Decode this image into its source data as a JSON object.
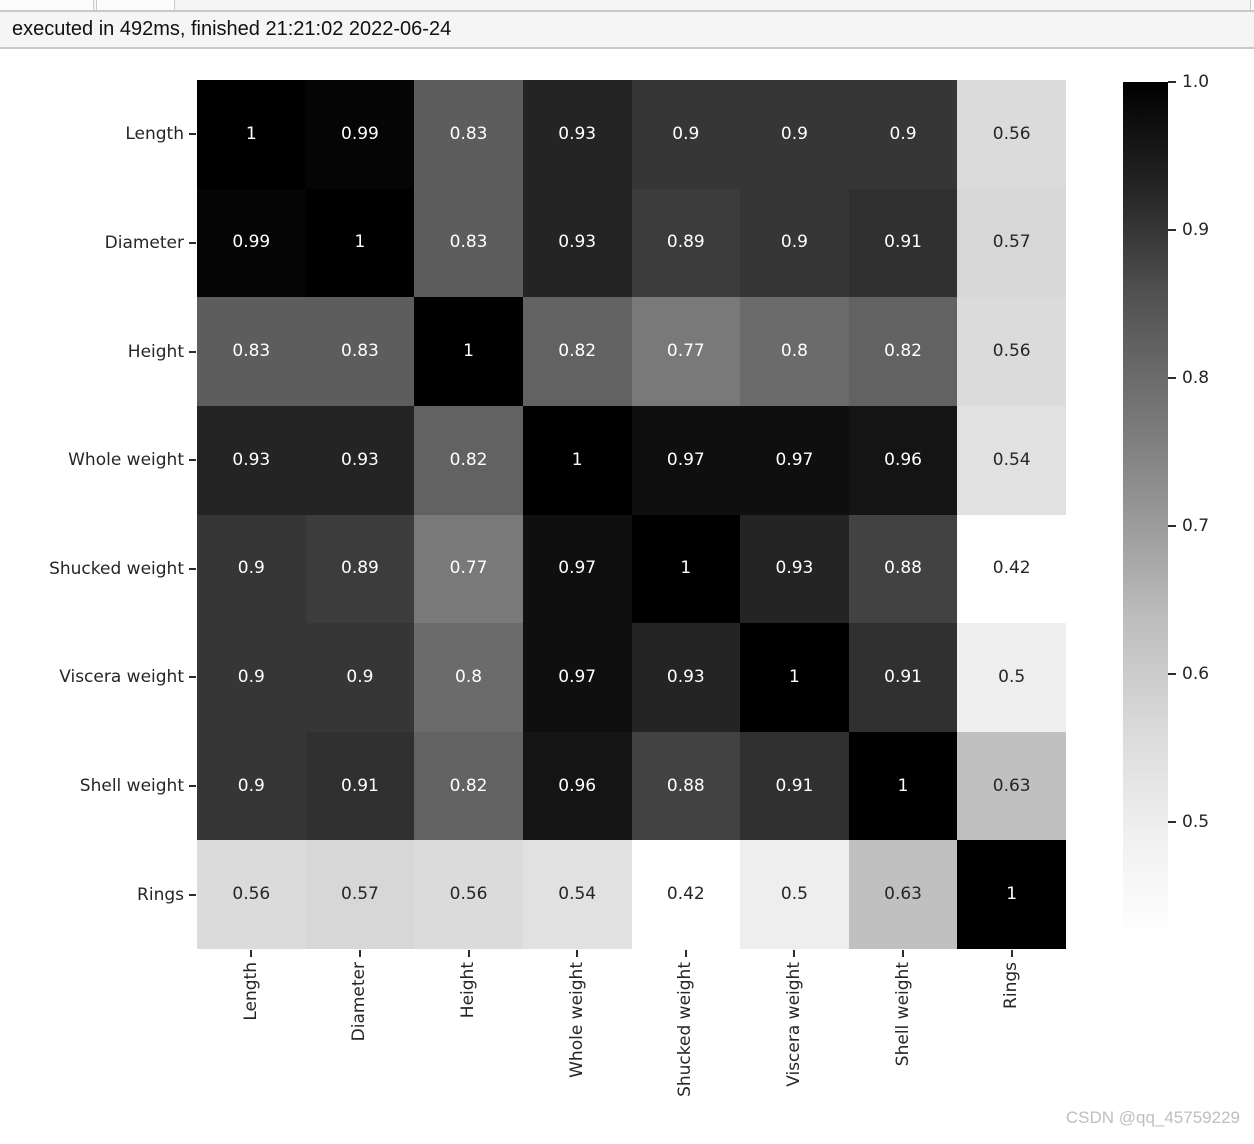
{
  "status_bar": {
    "text": "executed in 492ms, finished 21:21:02 2022-06-24"
  },
  "watermark": "CSDN @qq_45759229",
  "colors": {
    "fig_bg": "#ffffff",
    "status_bg": "#f5f5f5",
    "border": "#c9c9c9",
    "tick": "#2b2b2b",
    "label": "#262626",
    "annot_dark": "#262626",
    "annot_light": "#ffffff",
    "watermark": "#bfbfbf",
    "cmap_min_color": "#ffffff",
    "cmap_max_color": "#000000"
  },
  "chart_data": {
    "type": "heatmap",
    "title": "",
    "categories": [
      "Length",
      "Diameter",
      "Height",
      "Whole weight",
      "Shucked weight",
      "Viscera weight",
      "Shell weight",
      "Rings"
    ],
    "matrix": [
      [
        1,
        0.99,
        0.83,
        0.93,
        0.9,
        0.9,
        0.9,
        0.56
      ],
      [
        0.99,
        1,
        0.83,
        0.93,
        0.89,
        0.9,
        0.91,
        0.57
      ],
      [
        0.83,
        0.83,
        1,
        0.82,
        0.77,
        0.8,
        0.82,
        0.56
      ],
      [
        0.93,
        0.93,
        0.82,
        1,
        0.97,
        0.97,
        0.96,
        0.54
      ],
      [
        0.9,
        0.89,
        0.77,
        0.97,
        1,
        0.93,
        0.88,
        0.42
      ],
      [
        0.9,
        0.9,
        0.8,
        0.97,
        0.93,
        1,
        0.91,
        0.5
      ],
      [
        0.9,
        0.91,
        0.82,
        0.96,
        0.88,
        0.91,
        1,
        0.63
      ],
      [
        0.56,
        0.57,
        0.56,
        0.54,
        0.42,
        0.5,
        0.63,
        1
      ]
    ],
    "annotated": true,
    "colormap": "Greys",
    "vmin": 0.42,
    "vmax": 1.0,
    "colorbar_ticks": [
      1.0,
      0.9,
      0.8,
      0.7,
      0.6,
      0.5
    ],
    "colorbar_position": "right",
    "x_tick_rotation": 90,
    "grid": false
  }
}
